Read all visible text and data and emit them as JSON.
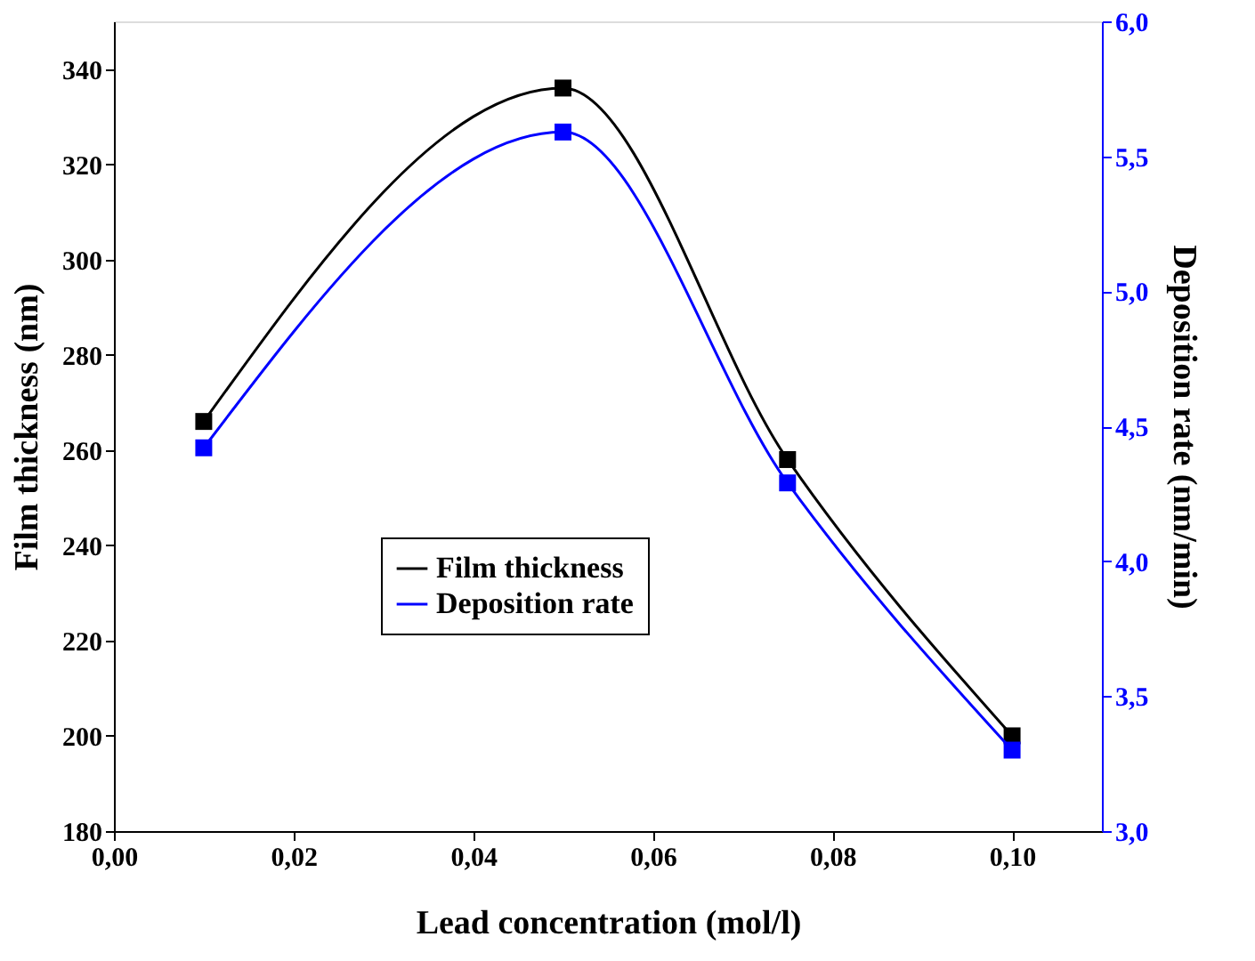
{
  "chart_data": {
    "type": "line",
    "xlabel": "Lead concentration (mol/l)",
    "ylabel": "Film thickness (nm)",
    "y2label": "Deposition rate (nm/min)",
    "x": [
      0.01,
      0.05,
      0.075,
      0.1
    ],
    "series": [
      {
        "name": "Film thickness",
        "color": "#000000",
        "values": [
          266,
          336,
          258,
          200
        ],
        "axis": "y"
      },
      {
        "name": "Deposition rate",
        "color": "#0000ff",
        "values": [
          4.42,
          5.59,
          4.29,
          3.3
        ],
        "axis": "y2"
      }
    ],
    "xlim": [
      0,
      0.11
    ],
    "xticks": [
      {
        "value": 0,
        "label": "0,00"
      },
      {
        "value": 0.02,
        "label": "0,02"
      },
      {
        "value": 0.04,
        "label": "0,04"
      },
      {
        "value": 0.06,
        "label": "0,06"
      },
      {
        "value": 0.08,
        "label": "0,08"
      },
      {
        "value": 0.1,
        "label": "0,10"
      }
    ],
    "ylim": [
      180,
      350
    ],
    "yticks": [
      180,
      200,
      220,
      240,
      260,
      280,
      300,
      320,
      340
    ],
    "y2lim": [
      3,
      6
    ],
    "y2ticks": [
      {
        "value": 3,
        "label": "3,0"
      },
      {
        "value": 3.5,
        "label": "3,5"
      },
      {
        "value": 4,
        "label": "4,0"
      },
      {
        "value": 4.5,
        "label": "4,5"
      },
      {
        "value": 5,
        "label": "5,0"
      },
      {
        "value": 5.5,
        "label": "5,5"
      },
      {
        "value": 6,
        "label": "6,0"
      }
    ],
    "marker": "square",
    "line_style": "solid",
    "legend": "bottom left",
    "grid": false
  }
}
